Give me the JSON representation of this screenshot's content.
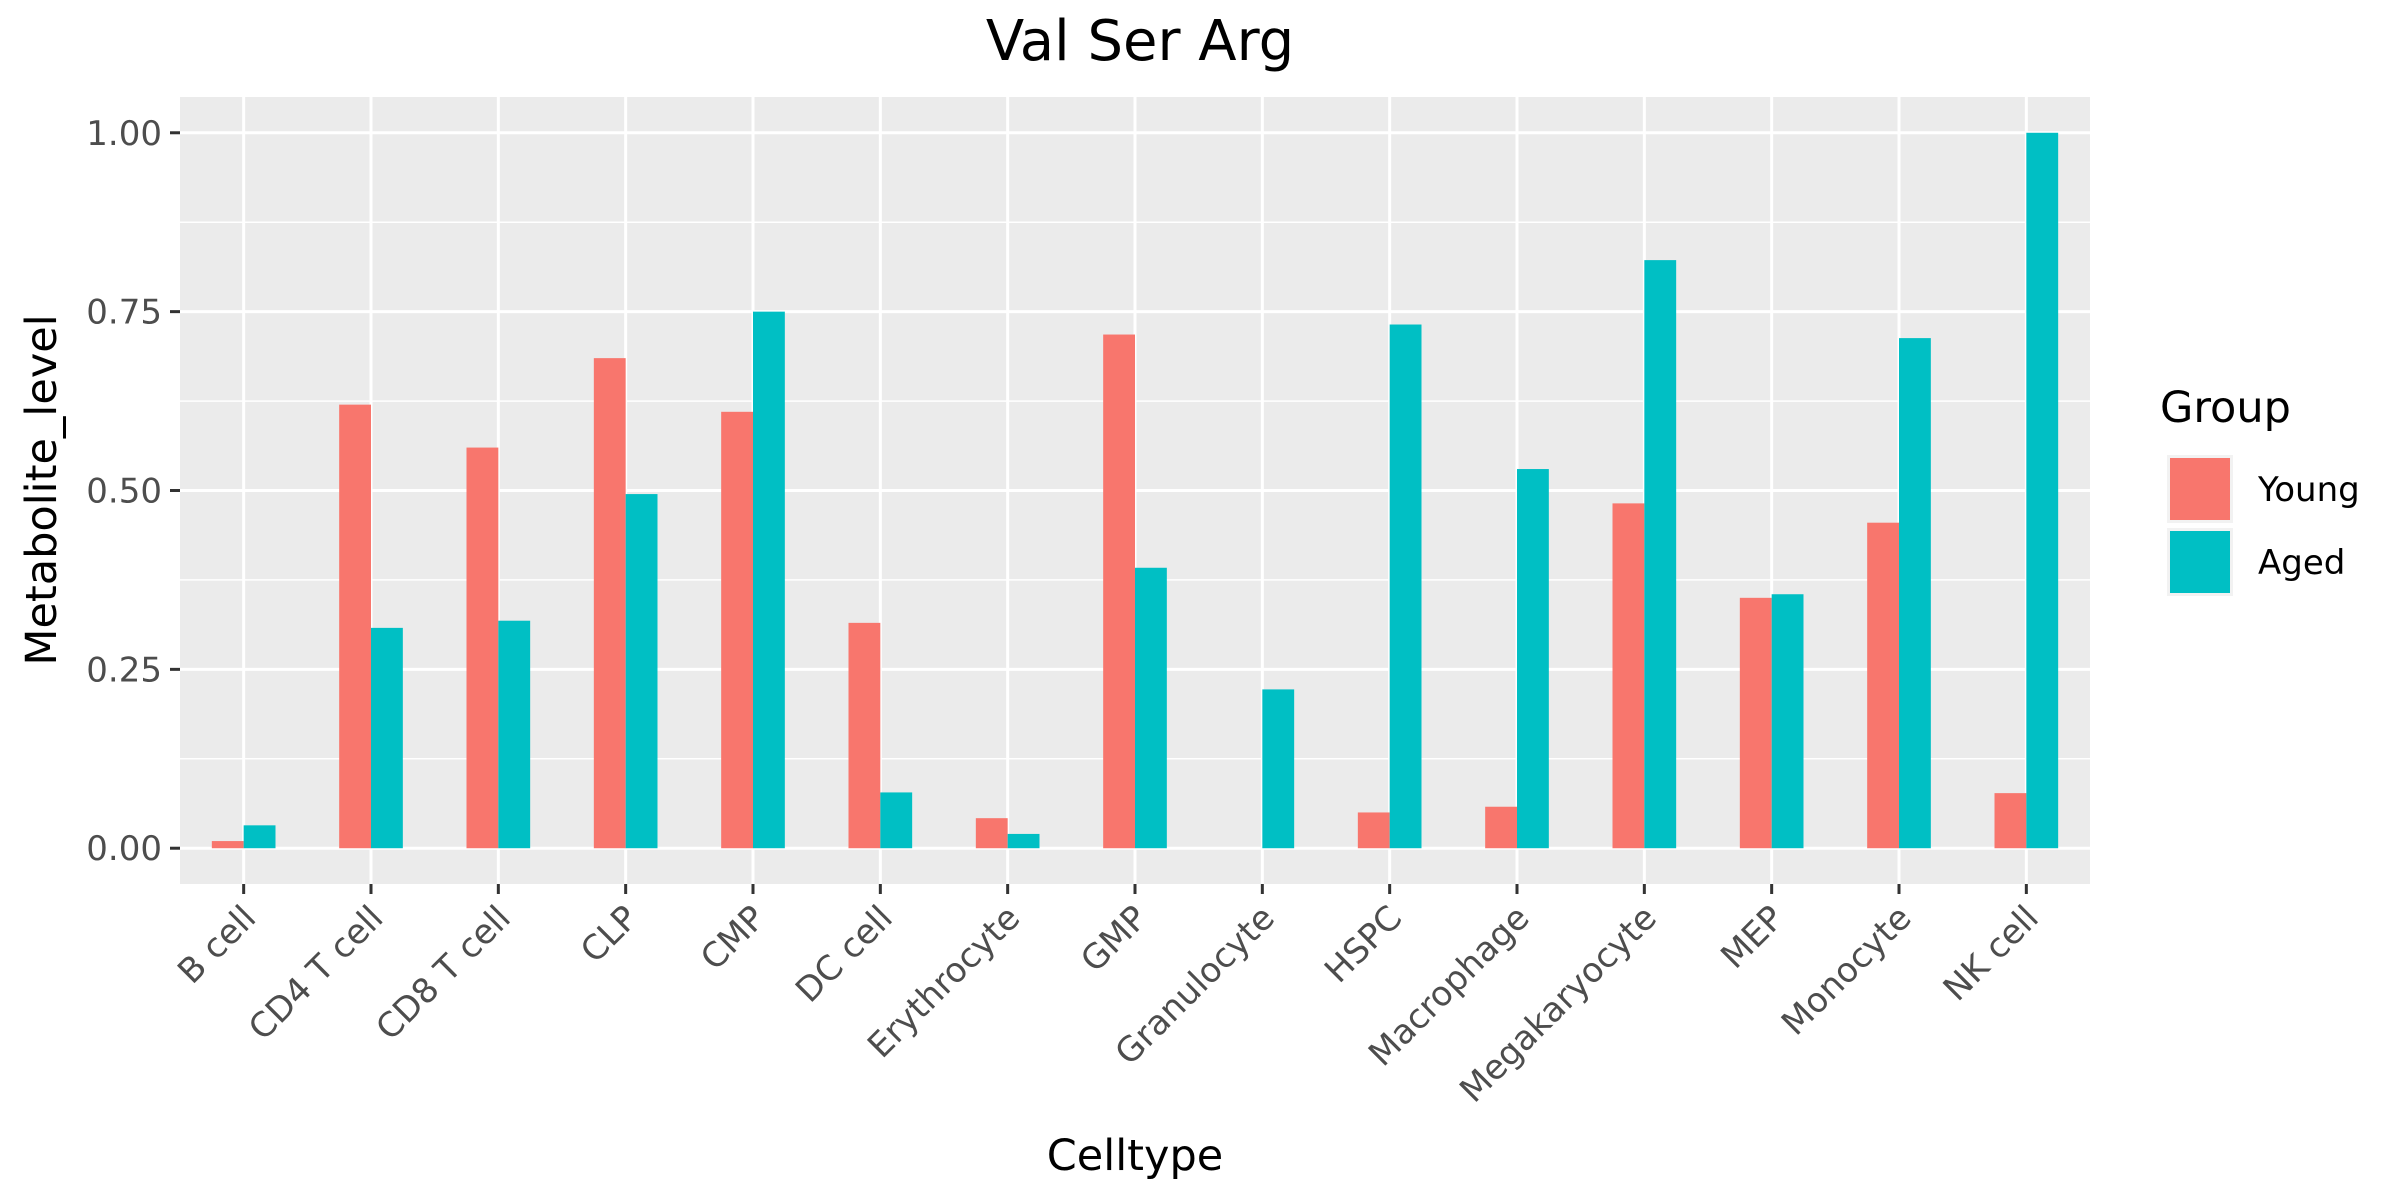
{
  "chart_data": {
    "type": "bar",
    "title": "Val Ser Arg",
    "xlabel": "Celltype",
    "ylabel": "Metabolite_level",
    "ylim": [
      -0.05,
      1.05
    ],
    "yticks": [
      0.0,
      0.25,
      0.5,
      0.75,
      1.0
    ],
    "ytick_labels": [
      "0.00",
      "0.25",
      "0.50",
      "0.75",
      "1.00"
    ],
    "grid": true,
    "legend": {
      "title": "Group",
      "position": "right"
    },
    "categories": [
      "B cell",
      "CD4 T cell",
      "CD8 T cell",
      "CLP",
      "CMP",
      "DC cell",
      "Erythrocyte",
      "GMP",
      "Granulocyte",
      "HSPC",
      "Macrophage",
      "Megakaryocyte",
      "MEP",
      "Monocyte",
      "NK cell"
    ],
    "series": [
      {
        "name": "Young",
        "color": "#F8766D",
        "values": [
          0.01,
          0.62,
          0.56,
          0.685,
          0.61,
          0.315,
          0.042,
          0.718,
          0.0,
          0.05,
          0.058,
          0.482,
          0.35,
          0.455,
          0.077
        ]
      },
      {
        "name": "Aged",
        "color": "#00BFC4",
        "values": [
          0.032,
          0.308,
          0.318,
          0.495,
          0.75,
          0.078,
          0.02,
          0.392,
          0.222,
          0.732,
          0.53,
          0.822,
          0.355,
          0.713,
          1.0
        ]
      }
    ]
  }
}
